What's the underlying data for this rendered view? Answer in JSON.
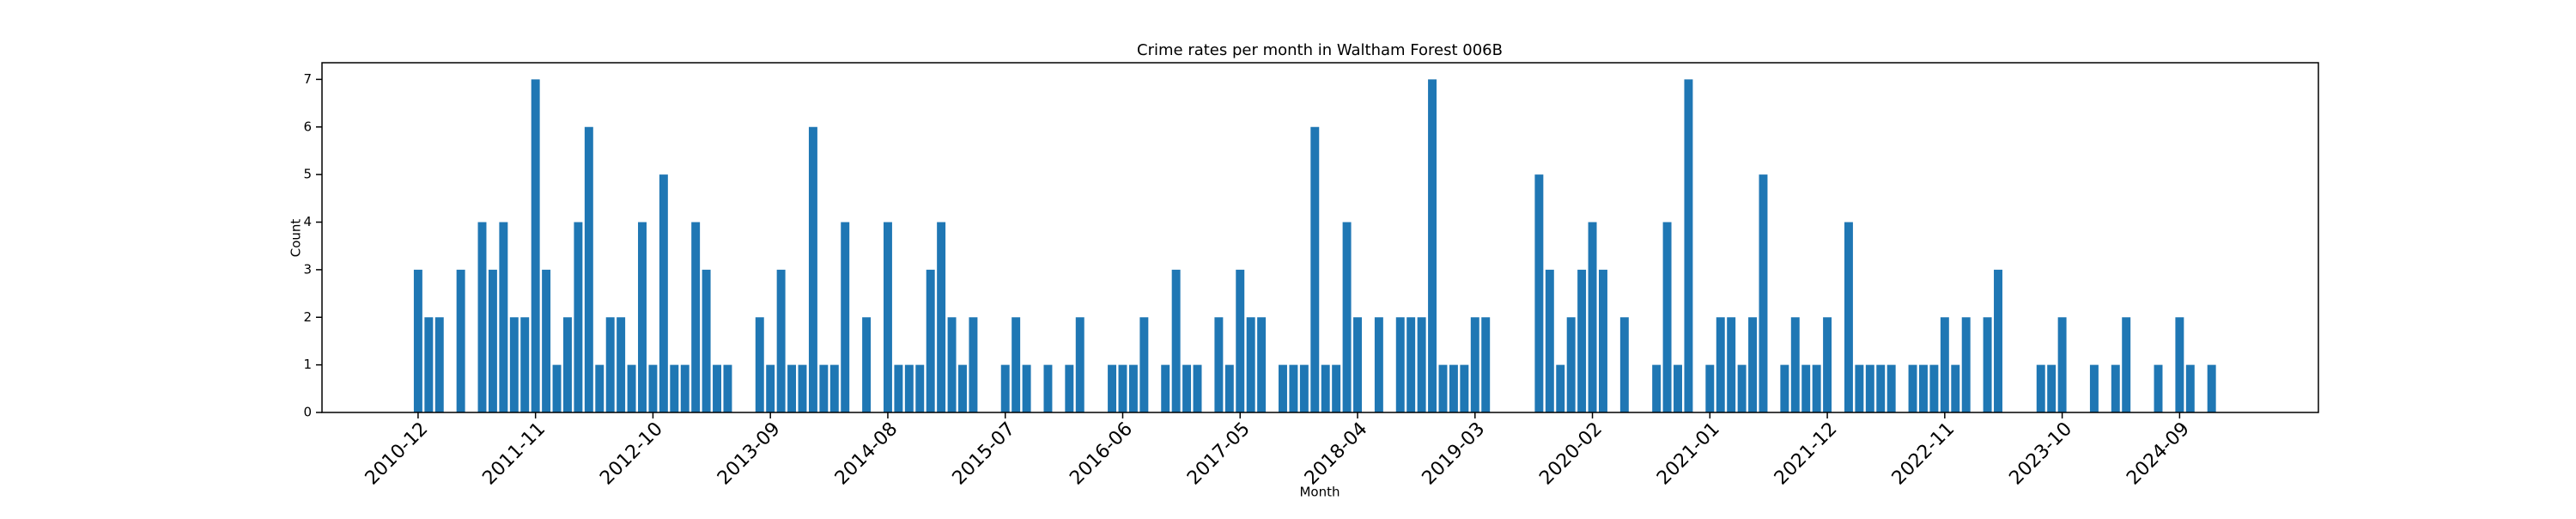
{
  "chart_data": {
    "type": "bar",
    "title": "Crime rates per month in Waltham Forest 006B",
    "xlabel": "Month",
    "ylabel": "Count",
    "color": "#1f77b4",
    "x": [
      "2010-12",
      "2011-01",
      "2011-02",
      "2011-04",
      "2011-06",
      "2011-07",
      "2011-08",
      "2011-09",
      "2011-10",
      "2011-11",
      "2011-12",
      "2012-01",
      "2012-02",
      "2012-03",
      "2012-04",
      "2012-05",
      "2012-06",
      "2012-07",
      "2012-08",
      "2012-09",
      "2012-10",
      "2012-11",
      "2012-12",
      "2013-01",
      "2013-02",
      "2013-03",
      "2013-04",
      "2013-05",
      "2013-08",
      "2013-09",
      "2013-10",
      "2013-11",
      "2013-12",
      "2014-01",
      "2014-02",
      "2014-03",
      "2014-04",
      "2014-06",
      "2014-08",
      "2014-09",
      "2014-10",
      "2014-11",
      "2014-12",
      "2015-01",
      "2015-02",
      "2015-03",
      "2015-04",
      "2015-07",
      "2015-08",
      "2015-09",
      "2015-11",
      "2016-01",
      "2016-02",
      "2016-05",
      "2016-06",
      "2016-07",
      "2016-08",
      "2016-10",
      "2016-11",
      "2016-12",
      "2017-01",
      "2017-03",
      "2017-04",
      "2017-05",
      "2017-06",
      "2017-07",
      "2017-09",
      "2017-10",
      "2017-11",
      "2017-12",
      "2018-01",
      "2018-02",
      "2018-03",
      "2018-04",
      "2018-06",
      "2018-08",
      "2018-09",
      "2018-10",
      "2018-11",
      "2018-12",
      "2019-01",
      "2019-02",
      "2019-03",
      "2019-04",
      "2019-09",
      "2019-10",
      "2019-11",
      "2019-12",
      "2020-01",
      "2020-02",
      "2020-03",
      "2020-05",
      "2020-08",
      "2020-09",
      "2020-10",
      "2020-11",
      "2021-01",
      "2021-02",
      "2021-03",
      "2021-04",
      "2021-05",
      "2021-06",
      "2021-08",
      "2021-09",
      "2021-10",
      "2021-11",
      "2021-12",
      "2022-02",
      "2022-03",
      "2022-04",
      "2022-05",
      "2022-06",
      "2022-08",
      "2022-09",
      "2022-10",
      "2022-11",
      "2022-12",
      "2023-01",
      "2023-03",
      "2023-04",
      "2023-08",
      "2023-09",
      "2023-10",
      "2024-01",
      "2024-03",
      "2024-04",
      "2024-07",
      "2024-09",
      "2024-10",
      "2024-12"
    ],
    "values": [
      3,
      2,
      2,
      3,
      4,
      3,
      4,
      2,
      2,
      7,
      3,
      1,
      2,
      4,
      6,
      1,
      2,
      2,
      1,
      4,
      1,
      5,
      1,
      1,
      4,
      3,
      1,
      1,
      2,
      1,
      3,
      1,
      1,
      6,
      1,
      1,
      4,
      2,
      4,
      1,
      1,
      1,
      3,
      4,
      2,
      1,
      2,
      1,
      2,
      1,
      1,
      1,
      2,
      1,
      1,
      1,
      2,
      1,
      3,
      1,
      1,
      2,
      1,
      3,
      2,
      2,
      1,
      1,
      1,
      6,
      1,
      1,
      4,
      2,
      2,
      2,
      2,
      2,
      7,
      1,
      1,
      1,
      2,
      2,
      5,
      3,
      1,
      2,
      3,
      4,
      3,
      2,
      1,
      4,
      1,
      7,
      1,
      2,
      2,
      1,
      2,
      5,
      1,
      2,
      1,
      1,
      2,
      4,
      1,
      1,
      1,
      1,
      1,
      1,
      1,
      2,
      1,
      2,
      2,
      3,
      1,
      1,
      2,
      1,
      1,
      2,
      1,
      2,
      1,
      1
    ],
    "xlim": [
      "2010-03",
      "2025-10"
    ],
    "xticks": [
      "2010-12",
      "2011-11",
      "2012-10",
      "2013-09",
      "2014-08",
      "2015-07",
      "2016-06",
      "2017-05",
      "2018-04",
      "2019-03",
      "2020-02",
      "2021-01",
      "2021-12",
      "2022-11",
      "2023-10",
      "2024-09"
    ],
    "ylim": [
      0,
      7.35
    ],
    "yticks": [
      0,
      1,
      2,
      3,
      4,
      5,
      6,
      7
    ]
  }
}
